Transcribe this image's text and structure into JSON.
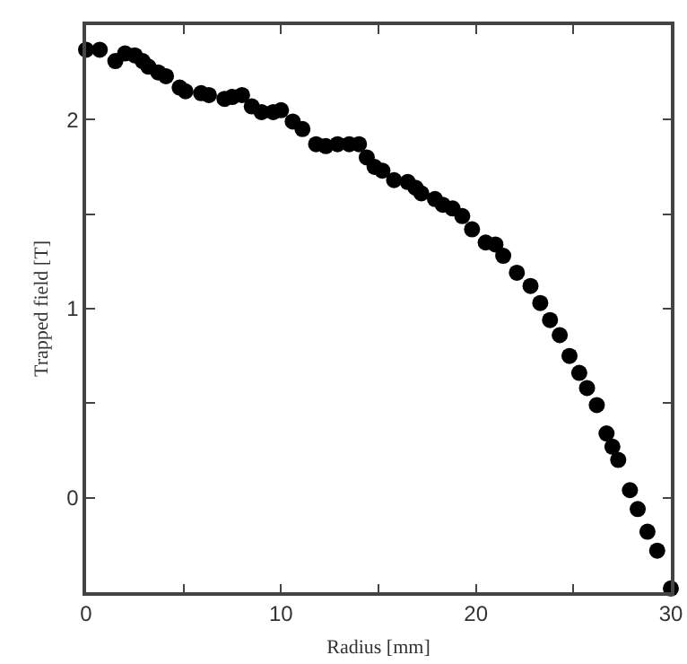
{
  "chart_data": {
    "type": "scatter",
    "xlabel": "Radius [mm]",
    "ylabel": "Trapped field [T]",
    "marker": "circle",
    "grid": false,
    "xlim": [
      0,
      30
    ],
    "ylim": [
      -0.5,
      2.5
    ],
    "xticks": [
      0,
      {
        "value": 5,
        "label": null
      },
      10,
      {
        "value": 15,
        "label": null
      },
      20,
      {
        "value": 25,
        "label": null
      },
      30
    ],
    "yticks": [
      0,
      {
        "value": 0.5,
        "label": null
      },
      1,
      {
        "value": 1.5,
        "label": null
      },
      2
    ],
    "series": [
      {
        "color": "#000000",
        "x": [
          0,
          0.7,
          1.5,
          2.0,
          2.5,
          2.9,
          3.2,
          3.7,
          4.1,
          4.8,
          5.1,
          5.9,
          6.3,
          7.1,
          7.5,
          8.0,
          8.5,
          9.0,
          9.6,
          10.0,
          10.6,
          11.1,
          11.8,
          12.3,
          12.9,
          13.5,
          14.0,
          14.4,
          14.8,
          15.2,
          15.8,
          16.5,
          16.9,
          17.2,
          17.9,
          18.3,
          18.8,
          19.3,
          19.8,
          20.5,
          21.0,
          21.4,
          22.1,
          22.8,
          23.3,
          23.8,
          24.3,
          24.8,
          25.3,
          25.7,
          26.2,
          26.7,
          27.0,
          27.3,
          27.9,
          28.3,
          28.8,
          29.3,
          30.0
        ],
        "values": [
          2.37,
          2.37,
          2.31,
          2.35,
          2.34,
          2.31,
          2.28,
          2.25,
          2.23,
          2.17,
          2.15,
          2.14,
          2.13,
          2.11,
          2.12,
          2.13,
          2.07,
          2.04,
          2.04,
          2.05,
          1.99,
          1.95,
          1.87,
          1.86,
          1.87,
          1.87,
          1.87,
          1.8,
          1.75,
          1.73,
          1.68,
          1.67,
          1.64,
          1.61,
          1.58,
          1.55,
          1.53,
          1.49,
          1.42,
          1.35,
          1.34,
          1.28,
          1.19,
          1.12,
          1.03,
          0.94,
          0.86,
          0.75,
          0.66,
          0.58,
          0.49,
          0.34,
          0.27,
          0.2,
          0.04,
          -0.06,
          -0.18,
          -0.28,
          -0.48
        ]
      }
    ]
  }
}
